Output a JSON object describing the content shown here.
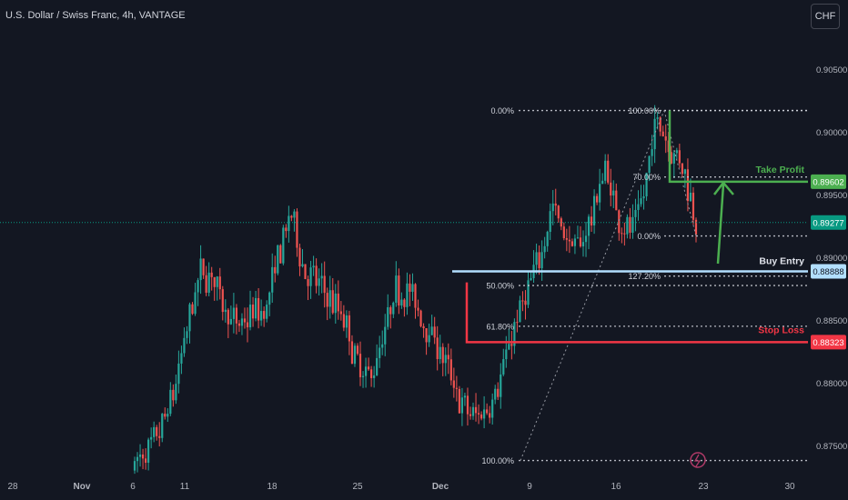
{
  "header": {
    "symbol_title": "U.S. Dollar / Swiss Franc, 4h, VANTAGE",
    "currency_button": "CHF"
  },
  "colors": {
    "background": "#131722",
    "bull": "#26a69a",
    "bear": "#ef5350",
    "take_profit": "#4caf50",
    "stop_loss": "#f23645",
    "buy_entry": "#b2dfff",
    "current_price": "#089981",
    "fib": "#d1d4dc"
  },
  "chart_data": {
    "type": "candlestick",
    "title": "U.S. Dollar / Swiss Franc, 4h, VANTAGE",
    "y_axis": {
      "range": [
        0.8738,
        0.9075
      ],
      "ticks": [
        "0.90500",
        "0.90000",
        "0.89500",
        "0.89000",
        "0.88500",
        "0.88000",
        "0.87500"
      ],
      "tick_values": [
        0.905,
        0.9,
        0.895,
        0.89,
        0.885,
        0.88,
        0.875
      ]
    },
    "x_axis": {
      "ticks": [
        "28",
        "Nov",
        "6",
        "11",
        "18",
        "25",
        "Dec",
        "9",
        "16",
        "23",
        "30"
      ]
    },
    "path": [
      [
        0.873,
        0.8742
      ],
      [
        0.8748,
        0.8738
      ],
      [
        0.877,
        0.8755
      ],
      [
        0.88,
        0.8785
      ],
      [
        0.885,
        0.8835
      ],
      [
        0.8905,
        0.887
      ],
      [
        0.8893,
        0.8875
      ],
      [
        0.8875,
        0.884
      ],
      [
        0.8855,
        0.883
      ],
      [
        0.8872,
        0.884
      ],
      [
        0.8865,
        0.8848
      ],
      [
        0.8918,
        0.8885
      ],
      [
        0.8945,
        0.8925
      ],
      [
        0.89,
        0.8875
      ],
      [
        0.8895,
        0.8865
      ],
      [
        0.8878,
        0.8855
      ],
      [
        0.8868,
        0.8835
      ],
      [
        0.8822,
        0.8808
      ],
      [
        0.8808,
        0.8798
      ],
      [
        0.8845,
        0.8825
      ],
      [
        0.8885,
        0.8862
      ],
      [
        0.8883,
        0.8865
      ],
      [
        0.8855,
        0.8845
      ],
      [
        0.8835,
        0.8835
      ],
      [
        0.882,
        0.88
      ],
      [
        0.879,
        0.8775
      ],
      [
        0.878,
        0.8765
      ],
      [
        0.877,
        0.879
      ],
      [
        0.88,
        0.8805
      ],
      [
        0.8835,
        0.885
      ],
      [
        0.886,
        0.888
      ],
      [
        0.889,
        0.891
      ],
      [
        0.8945,
        0.894
      ],
      [
        0.8925,
        0.8905
      ],
      [
        0.8905,
        0.891
      ],
      [
        0.892,
        0.8945
      ],
      [
        0.897,
        0.8975
      ],
      [
        0.894,
        0.8925
      ],
      [
        0.8922,
        0.8918
      ],
      [
        0.8935,
        0.8965
      ],
      [
        0.9015,
        0.9012
      ],
      [
        0.899,
        0.8985
      ],
      [
        0.898,
        0.8965
      ],
      [
        0.894,
        0.892
      ]
    ],
    "annotations": {
      "take_profit": {
        "label": "Take Profit",
        "price": 0.89602,
        "price_label": "0.89602"
      },
      "buy_entry": {
        "label": "Buy Entry",
        "price": 0.88888,
        "price_label": "0.88888"
      },
      "stop_loss": {
        "label": "Stop Loss",
        "price": 0.88323,
        "price_label": "0.88323"
      },
      "current_price": {
        "price": 0.89277,
        "price_label": "0.89277"
      }
    },
    "fib_retracement_left": {
      "high": 0.9017,
      "low": 0.8738,
      "levels": [
        {
          "label": "0.00%",
          "price": 0.9017
        },
        {
          "label": "50.00%",
          "price": 0.88775
        },
        {
          "label": "61.80%",
          "price": 0.8845
        }
      ],
      "bottom_label": "100.00%"
    },
    "fib_extension_right": {
      "levels": [
        {
          "label": "100.00%",
          "price": 0.9017
        },
        {
          "label": "70.00%",
          "price": 0.8964
        },
        {
          "label": "0.00%",
          "price": 0.8917
        },
        {
          "label": "127.20%",
          "price": 0.8885
        }
      ]
    }
  }
}
